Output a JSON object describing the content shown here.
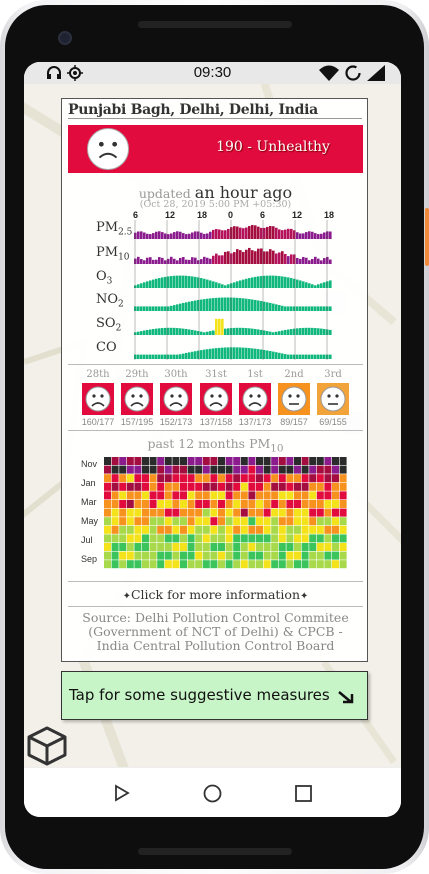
{
  "status_bar": {
    "time": "09:30"
  },
  "card": {
    "location": "Punjabi Bagh, Delhi, Delhi, India",
    "aqi_label": "190 - Unhealthy",
    "updated_prefix": "updated",
    "updated_relative": "an hour ago",
    "updated_exact": "(Oct 28, 2019 5:00 PM +05:30)",
    "hour_ticks": [
      "6",
      "12",
      "18",
      "0",
      "6",
      "12",
      "18"
    ],
    "pollutants": [
      {
        "name": "PM",
        "sub": "2.5"
      },
      {
        "name": "PM",
        "sub": "10"
      },
      {
        "name": "O",
        "sub": "3"
      },
      {
        "name": "NO",
        "sub": "2"
      },
      {
        "name": "SO",
        "sub": "2"
      },
      {
        "name": "CO",
        "sub": ""
      }
    ],
    "forecast": [
      {
        "day": "28th",
        "range": "160/177",
        "level": "unhealthy"
      },
      {
        "day": "29th",
        "range": "157/195",
        "level": "unhealthy"
      },
      {
        "day": "30th",
        "range": "152/173",
        "level": "unhealthy"
      },
      {
        "day": "31st",
        "range": "137/158",
        "level": "unhealthy"
      },
      {
        "day": "1st",
        "range": "137/173",
        "level": "unhealthy"
      },
      {
        "day": "2nd",
        "range": "89/157",
        "level": "sensitive"
      },
      {
        "day": "3rd",
        "range": "69/155",
        "level": "moderate"
      }
    ],
    "history_title": "past 12 months PM",
    "history_sub": "10",
    "month_labels": [
      "Nov",
      "Jan",
      "Mar",
      "May",
      "Jul",
      "Sep"
    ],
    "more_info": "Click for more information",
    "source": "Source: Delhi Pollution Control Commitee (Government of NCT of Delhi) & CPCB - India Central Pollution Control Board"
  },
  "tap_button": {
    "label": "Tap for some suggestive measures"
  },
  "colors": {
    "unhealthy": "#e20b3e",
    "sensitive": "#f7921e",
    "moderate": "#f2a33a",
    "tap_bg": "#c8f5c8",
    "aqi_green": "#11b87e"
  },
  "icons": [
    "headphones-icon",
    "location-icon",
    "wifi-icon",
    "sync-icon",
    "signal-icon",
    "sad-face-icon",
    "neutral-face-icon",
    "sparkle-icon",
    "arrow-down-right-icon",
    "cube-icon",
    "back-icon",
    "home-icon",
    "recents-icon"
  ]
}
